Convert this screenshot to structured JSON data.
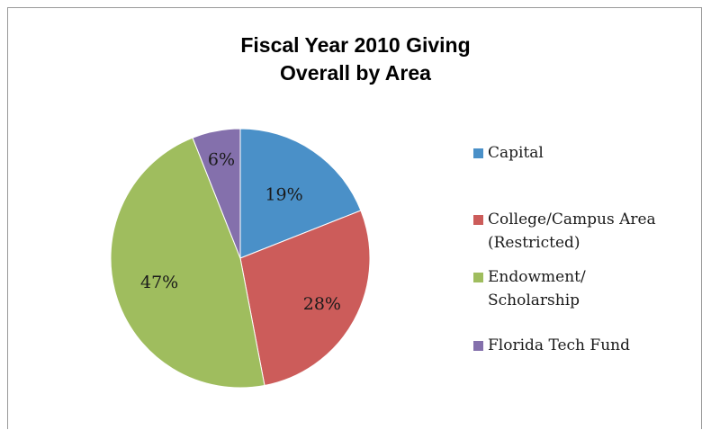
{
  "chart_data": {
    "type": "pie",
    "title": "Fiscal Year 2010 Giving Overall by Area",
    "title_lines": [
      "Fiscal Year 2010 Giving",
      "Overall by Area"
    ],
    "legend_position": "right",
    "slices": [
      {
        "name": "Capital",
        "legend_lines": [
          "Capital"
        ],
        "value": 19,
        "label": "19%",
        "color": "#4a90c8"
      },
      {
        "name": "College/Campus Area (Restricted)",
        "legend_lines": [
          "College/Campus Area",
          "(Restricted)"
        ],
        "value": 28,
        "label": "28%",
        "color": "#cc5c5a"
      },
      {
        "name": "Endowment/ Scholarship",
        "legend_lines": [
          "Endowment/",
          "Scholarship"
        ],
        "value": 47,
        "label": "47%",
        "color": "#9fbd5e"
      },
      {
        "name": "Florida Tech Fund",
        "legend_lines": [
          "Florida Tech Fund"
        ],
        "value": 6,
        "label": "6%",
        "color": "#8470ac"
      }
    ]
  }
}
